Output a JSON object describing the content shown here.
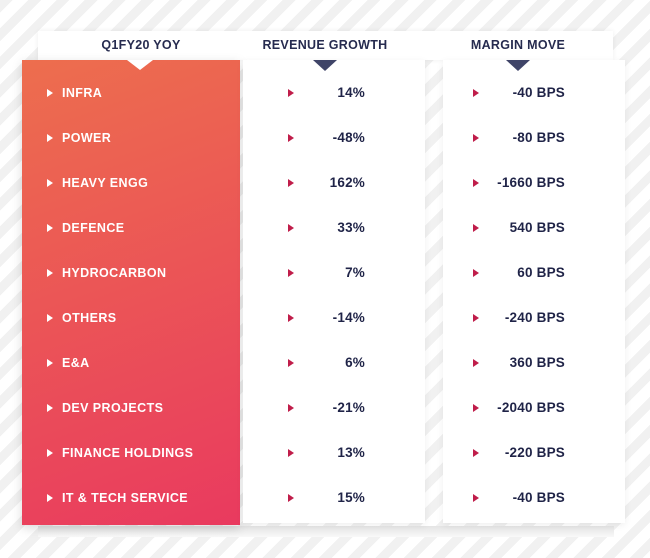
{
  "header": {
    "columns": [
      {
        "id": "segment",
        "label": "Q1FY20 YOY"
      },
      {
        "id": "revenue_growth",
        "label": "REVENUE GROWTH"
      },
      {
        "id": "margin_move",
        "label": "MARGIN MOVE"
      }
    ]
  },
  "table": {
    "rows": [
      {
        "segment": "INFRA",
        "revenue_growth": "14%",
        "margin_move": "-40 BPS"
      },
      {
        "segment": "POWER",
        "revenue_growth": "-48%",
        "margin_move": "-80 BPS"
      },
      {
        "segment": "HEAVY ENGG",
        "revenue_growth": "162%",
        "margin_move": "-1660 BPS"
      },
      {
        "segment": "DEFENCE",
        "revenue_growth": "33%",
        "margin_move": "540 BPS"
      },
      {
        "segment": "HYDROCARBON",
        "revenue_growth": "7%",
        "margin_move": "60 BPS"
      },
      {
        "segment": "OTHERS",
        "revenue_growth": "-14%",
        "margin_move": "-240 BPS"
      },
      {
        "segment": "E&A",
        "revenue_growth": "6%",
        "margin_move": "360 BPS"
      },
      {
        "segment": "DEV PROJECTS",
        "revenue_growth": "-21%",
        "margin_move": "-2040 BPS"
      },
      {
        "segment": "FINANCE HOLDINGS",
        "revenue_growth": "13%",
        "margin_move": "-220 BPS"
      },
      {
        "segment": "IT & TECH SERVICE",
        "revenue_growth": "15%",
        "margin_move": "-40 BPS"
      }
    ]
  },
  "chart_data": {
    "type": "table",
    "title": "Q1FY20 YOY",
    "columns": [
      "Q1FY20 YOY",
      "REVENUE GROWTH",
      "MARGIN MOVE"
    ],
    "categories": [
      "INFRA",
      "POWER",
      "HEAVY ENGG",
      "DEFENCE",
      "HYDROCARBON",
      "OTHERS",
      "E&A",
      "DEV PROJECTS",
      "FINANCE HOLDINGS",
      "IT & TECH SERVICE"
    ],
    "series": [
      {
        "name": "REVENUE GROWTH",
        "unit": "%",
        "values": [
          14,
          -48,
          162,
          33,
          7,
          -14,
          6,
          -21,
          13,
          15
        ]
      },
      {
        "name": "MARGIN MOVE",
        "unit": "BPS",
        "values": [
          -40,
          -80,
          -1660,
          540,
          60,
          -240,
          360,
          -2040,
          -220,
          -40
        ]
      }
    ],
    "legend_position": "none",
    "grid": false
  },
  "icons": {
    "row_marker": "▶",
    "column_pointer": "▼"
  },
  "colors": {
    "gradient_top": "#ED6E4E",
    "gradient_bottom": "#E93A5F",
    "header_text": "#262B4F",
    "value_text": "#1F2347",
    "pointer_navy": "#3F4468",
    "arrow_crimson": "#C01D4A",
    "stripe": "#F1F1F1",
    "card_white": "#FFFFFF"
  }
}
